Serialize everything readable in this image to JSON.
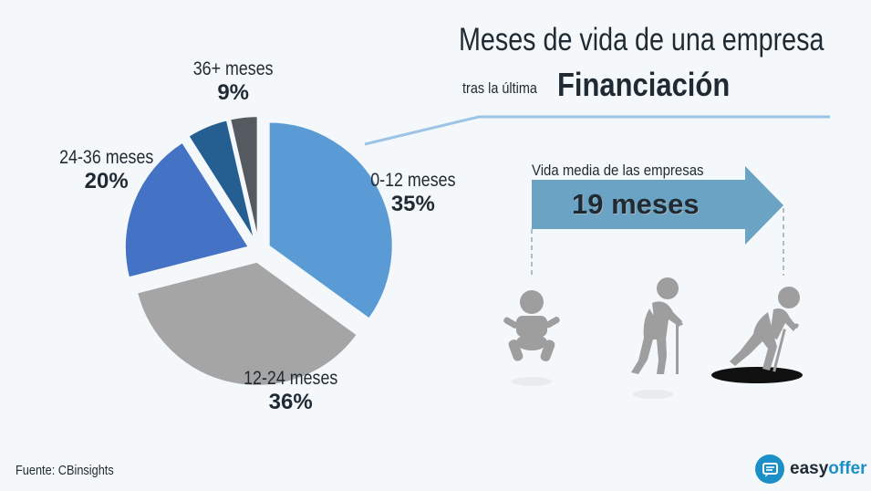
{
  "title": {
    "main": "Meses de vida de una empresa",
    "sub": "tras la última",
    "emphasis": "Financiación"
  },
  "chart_data": {
    "type": "pie",
    "categories": [
      "0-12 meses",
      "12-24 meses",
      "24-36 meses",
      "36+ meses"
    ],
    "values": [
      35,
      36,
      20,
      9
    ],
    "value_labels": [
      "35%",
      "36%",
      "20%",
      "9%"
    ],
    "slice_colors": [
      "#5b9bd5",
      "#a5a5a5",
      "#4472c4",
      "#255e91",
      "#555a60"
    ],
    "exploded": true
  },
  "life": {
    "label": "Vida media de las empresas",
    "value": "19 meses",
    "arrow_color": "#6aa3c3"
  },
  "source": "Fuente: CBinsights",
  "brand": {
    "name_a": "easy",
    "name_b": "offer"
  },
  "colors": {
    "accent_line": "#9dc3e6",
    "text": "#1f2a33",
    "figure": "#9e9e9e"
  }
}
